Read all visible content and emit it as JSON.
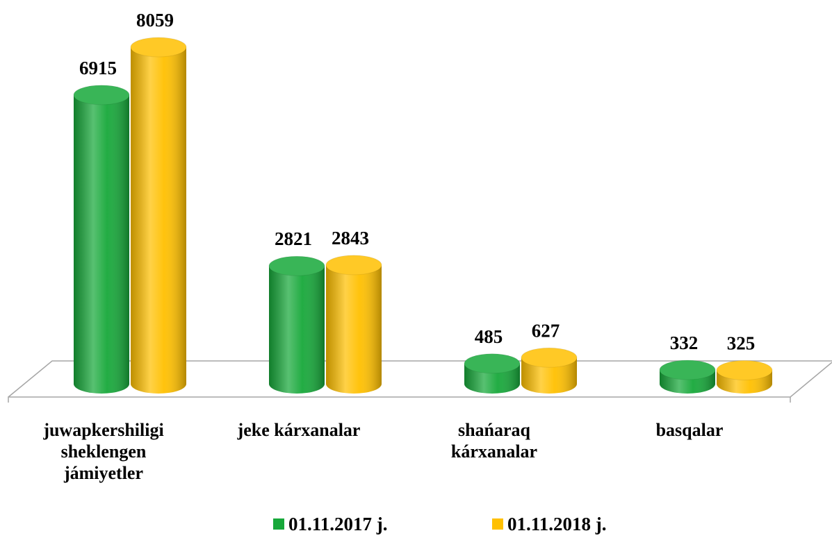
{
  "chart_data": {
    "type": "bar3d",
    "categories": [
      "juwapkershiligi sheklengen jámiyetler",
      "jeke kárxanalar",
      "shańaraq kárxanalar",
      "basqalar"
    ],
    "series": [
      {
        "name": "01.11.2017 j.",
        "color": "#17a83a",
        "values": [
          6915,
          2821,
          485,
          332
        ]
      },
      {
        "name": "01.11.2018 j.",
        "color": "#ffc000",
        "values": [
          8059,
          2843,
          627,
          325
        ]
      }
    ],
    "legend": "bottom"
  }
}
